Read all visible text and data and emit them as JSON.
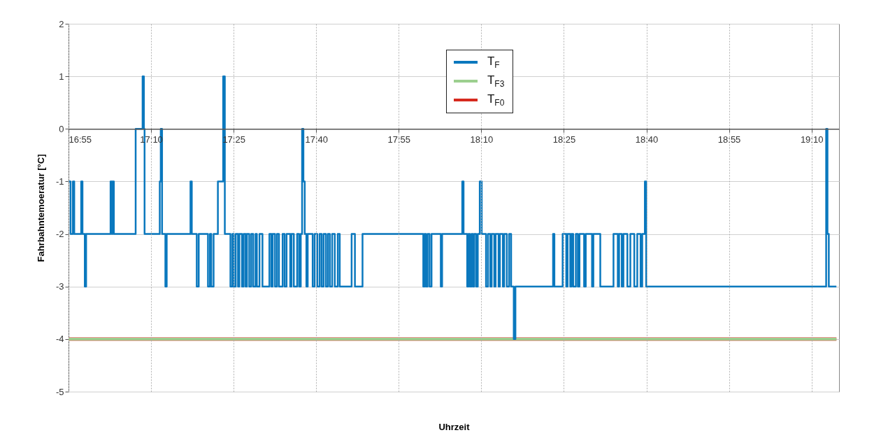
{
  "chart_data": {
    "type": "step",
    "xlabel": "Uhrzeit",
    "ylabel": "Fahrbahntemoeratur [°C]",
    "xlim": [
      16.9167,
      19.25
    ],
    "xticks": [
      {
        "value": 16.9167,
        "label": "16:55"
      },
      {
        "value": 17.1667,
        "label": "17:10"
      },
      {
        "value": 17.4167,
        "label": "17:25"
      },
      {
        "value": 17.6667,
        "label": "17:40"
      },
      {
        "value": 17.9167,
        "label": "17:55"
      },
      {
        "value": 18.1667,
        "label": "18:10"
      },
      {
        "value": 18.4167,
        "label": "18:25"
      },
      {
        "value": 18.6667,
        "label": "18:40"
      },
      {
        "value": 18.9167,
        "label": "18:55"
      },
      {
        "value": 19.1667,
        "label": "19:10"
      }
    ],
    "ylim": [
      -5,
      2
    ],
    "yticks": [
      -5,
      -4,
      -3,
      -2,
      -1,
      0,
      1,
      2
    ],
    "grid": true,
    "legend": "top",
    "series": [
      {
        "name": "T$_{F0}$",
        "color": "#d62a1e",
        "x": [
          16.917,
          19.242
        ],
        "values": [
          -4,
          -4
        ]
      },
      {
        "name": "T$_{F3}$",
        "color": "#9ccf8f",
        "x": [
          16.917,
          19.242
        ],
        "values": [
          -4,
          -4
        ]
      },
      {
        "name": "T$_{F}$",
        "color": "#0a78be",
        "x": [
          16.917,
          16.923,
          16.93,
          16.934,
          16.955,
          16.959,
          16.966,
          16.97,
          17.044,
          17.048,
          17.05,
          17.054,
          17.12,
          17.141,
          17.145,
          17.147,
          17.193,
          17.196,
          17.2,
          17.21,
          17.214,
          17.286,
          17.29,
          17.305,
          17.311,
          17.339,
          17.345,
          17.349,
          17.356,
          17.369,
          17.385,
          17.39,
          17.407,
          17.413,
          17.417,
          17.423,
          17.43,
          17.434,
          17.442,
          17.447,
          17.453,
          17.457,
          17.464,
          17.47,
          17.476,
          17.483,
          17.487,
          17.495,
          17.504,
          17.525,
          17.531,
          17.535,
          17.542,
          17.548,
          17.554,
          17.565,
          17.571,
          17.577,
          17.588,
          17.592,
          17.599,
          17.609,
          17.615,
          17.62,
          17.624,
          17.628,
          17.632,
          17.637,
          17.641,
          17.656,
          17.662,
          17.67,
          17.677,
          17.683,
          17.689,
          17.696,
          17.702,
          17.708,
          17.715,
          17.723,
          17.732,
          17.738,
          17.774,
          17.784,
          17.807,
          17.991,
          17.995,
          17.999,
          18.004,
          18.01,
          18.016,
          18.044,
          18.048,
          18.109,
          18.113,
          18.124,
          18.128,
          18.132,
          18.137,
          18.141,
          18.145,
          18.151,
          18.156,
          18.162,
          18.168,
          18.181,
          18.187,
          18.194,
          18.198,
          18.206,
          18.21,
          18.219,
          18.223,
          18.232,
          18.236,
          18.244,
          18.251,
          18.257,
          18.265,
          18.27,
          18.384,
          18.388,
          18.413,
          18.424,
          18.428,
          18.436,
          18.44,
          18.445,
          18.453,
          18.459,
          18.464,
          18.478,
          18.483,
          18.502,
          18.506,
          18.527,
          18.567,
          18.58,
          18.584,
          18.592,
          18.597,
          18.609,
          18.618,
          18.63,
          18.639,
          18.649,
          18.654,
          18.662,
          18.666,
          19.211,
          19.215,
          19.219,
          19.242
        ],
        "values": [
          -1,
          -2,
          -1,
          -2,
          -1,
          -2,
          -3,
          -2,
          -1,
          -2,
          -1,
          -2,
          0,
          1,
          0,
          -2,
          -1,
          0,
          -2,
          -3,
          -2,
          -1,
          -2,
          -3,
          -2,
          -3,
          -2,
          -3,
          -2,
          -1,
          1,
          -2,
          -3,
          -2,
          -3,
          -2,
          -3,
          -2,
          -3,
          -2,
          -3,
          -2,
          -3,
          -2,
          -3,
          -2,
          -3,
          -2,
          -3,
          -2,
          -3,
          -2,
          -3,
          -2,
          -3,
          -2,
          -3,
          -2,
          -3,
          -2,
          -3,
          -2,
          -3,
          -2,
          0,
          -1,
          -2,
          -3,
          -2,
          -3,
          -2,
          -3,
          -2,
          -3,
          -2,
          -3,
          -2,
          -3,
          -2,
          -3,
          -2,
          -3,
          -2,
          -3,
          -2,
          -3,
          -2,
          -3,
          -2,
          -3,
          -2,
          -3,
          -2,
          -1,
          -2,
          -3,
          -2,
          -3,
          -2,
          -3,
          -2,
          -3,
          -2,
          -1,
          -2,
          -3,
          -2,
          -3,
          -2,
          -3,
          -2,
          -3,
          -2,
          -3,
          -2,
          -3,
          -2,
          -3,
          -4,
          -3,
          -2,
          -3,
          -2,
          -3,
          -2,
          -3,
          -2,
          -3,
          -2,
          -3,
          -2,
          -3,
          -2,
          -3,
          -2,
          -3,
          -2,
          -3,
          -2,
          -3,
          -2,
          -3,
          -2,
          -3,
          -2,
          -3,
          -2,
          -1,
          -3,
          0,
          -2,
          -3,
          -3
        ]
      }
    ]
  }
}
